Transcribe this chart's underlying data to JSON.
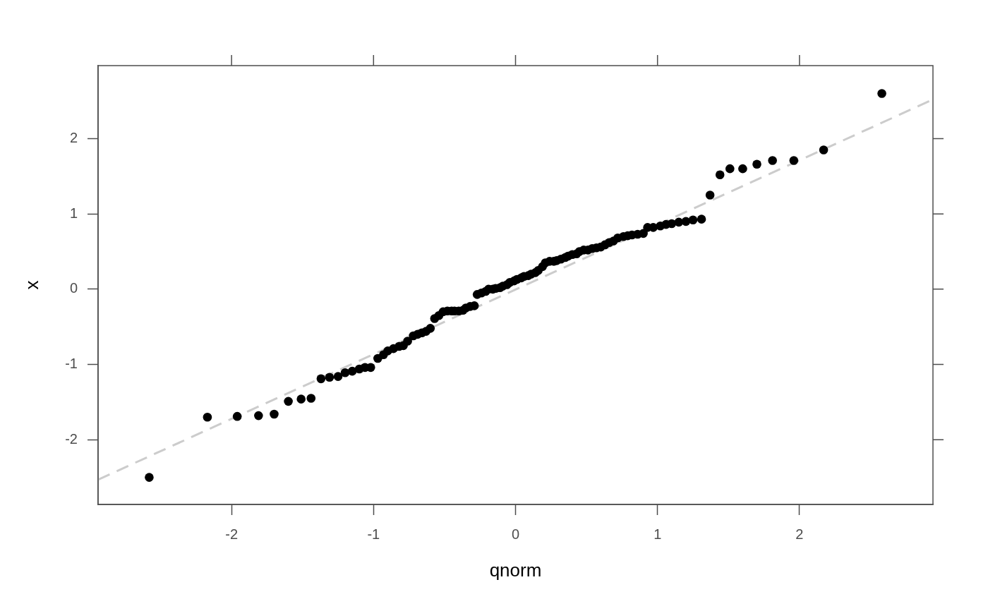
{
  "chart_data": {
    "type": "scatter",
    "xlabel": "qnorm",
    "ylabel": "x",
    "xlim": [
      -2.94,
      2.94
    ],
    "ylim": [
      -2.86,
      2.97
    ],
    "xticks": [
      -2,
      -1,
      0,
      1,
      2
    ],
    "yticks": [
      -2,
      -1,
      0,
      1,
      2
    ],
    "grid": false,
    "legend": false,
    "marker": "circle",
    "series": [
      {
        "type": "line",
        "color": "#cccccc",
        "line_style": "dashed",
        "marker": "none",
        "x": [
          -2.94,
          2.94
        ],
        "values": [
          -2.53,
          2.52
        ]
      },
      {
        "color": "#000000",
        "x": [
          -2.58,
          -2.17,
          -1.96,
          -1.81,
          -1.7,
          -1.6,
          -1.51,
          -1.44,
          -1.37,
          -1.31,
          -1.25,
          -1.2,
          -1.15,
          -1.1,
          -1.06,
          -1.02,
          -0.97,
          -0.93,
          -0.9,
          -0.86,
          -0.82,
          -0.79,
          -0.76,
          -0.72,
          -0.69,
          -0.66,
          -0.63,
          -0.6,
          -0.57,
          -0.54,
          -0.51,
          -0.48,
          -0.45,
          -0.43,
          -0.4,
          -0.37,
          -0.35,
          -0.32,
          -0.29,
          -0.27,
          -0.24,
          -0.21,
          -0.19,
          -0.16,
          -0.14,
          -0.11,
          -0.09,
          -0.06,
          -0.04,
          -0.01,
          0.01,
          0.04,
          0.06,
          0.09,
          0.11,
          0.14,
          0.16,
          0.19,
          0.21,
          0.24,
          0.27,
          0.29,
          0.32,
          0.35,
          0.37,
          0.4,
          0.43,
          0.45,
          0.48,
          0.51,
          0.54,
          0.57,
          0.6,
          0.63,
          0.66,
          0.69,
          0.72,
          0.76,
          0.79,
          0.82,
          0.86,
          0.9,
          0.93,
          0.97,
          1.02,
          1.06,
          1.1,
          1.15,
          1.2,
          1.25,
          1.31,
          1.37,
          1.44,
          1.51,
          1.6,
          1.7,
          1.81,
          1.96,
          2.17,
          2.58
        ],
        "values": [
          -2.5,
          -1.7,
          -1.69,
          -1.68,
          -1.66,
          -1.49,
          -1.46,
          -1.45,
          -1.19,
          -1.17,
          -1.16,
          -1.11,
          -1.09,
          -1.06,
          -1.04,
          -1.04,
          -0.92,
          -0.87,
          -0.82,
          -0.79,
          -0.76,
          -0.75,
          -0.69,
          -0.62,
          -0.6,
          -0.58,
          -0.56,
          -0.52,
          -0.39,
          -0.35,
          -0.3,
          -0.29,
          -0.29,
          -0.29,
          -0.29,
          -0.28,
          -0.25,
          -0.23,
          -0.22,
          -0.07,
          -0.05,
          -0.03,
          0.0,
          0.0,
          0.01,
          0.02,
          0.04,
          0.06,
          0.09,
          0.11,
          0.13,
          0.15,
          0.17,
          0.18,
          0.2,
          0.22,
          0.25,
          0.3,
          0.35,
          0.37,
          0.37,
          0.38,
          0.4,
          0.42,
          0.44,
          0.46,
          0.47,
          0.5,
          0.52,
          0.52,
          0.54,
          0.55,
          0.56,
          0.59,
          0.62,
          0.64,
          0.68,
          0.7,
          0.71,
          0.72,
          0.73,
          0.74,
          0.82,
          0.82,
          0.84,
          0.86,
          0.87,
          0.89,
          0.9,
          0.92,
          0.93,
          1.25,
          1.52,
          1.6,
          1.6,
          1.66,
          1.71,
          1.71,
          1.85,
          2.6
        ]
      }
    ]
  }
}
